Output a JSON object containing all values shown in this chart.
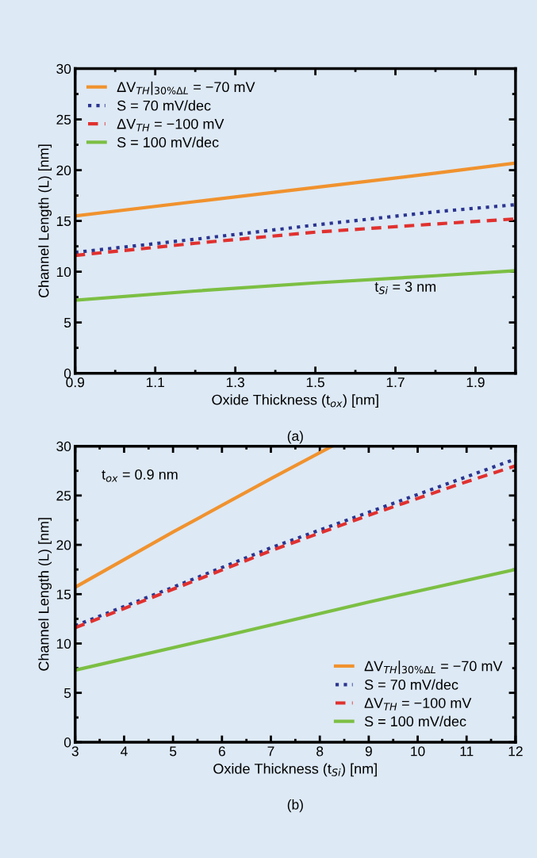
{
  "chart_data": [
    {
      "type": "line",
      "xlabel": "Oxide Thickness (t$_{ox}$) [nm]",
      "ylabel": "Channel Length (L) [nm]",
      "annotations": [
        "t$_{Si}$ = 3 nm",
        "(a)"
      ],
      "xlim": [
        0.9,
        2.0
      ],
      "xticks": [
        0.9,
        1.1,
        1.3,
        1.5,
        1.7,
        1.9
      ],
      "ylim": [
        0,
        30
      ],
      "yticks": [
        0,
        5,
        10,
        15,
        20,
        25,
        30
      ],
      "grid": false,
      "legend": "top left",
      "x": [
        0.9,
        1.2,
        1.5,
        1.8,
        2.0
      ],
      "series": [
        {
          "name": "ΔV$_{TH}$|$_{30%ΔL}$ = −70 mV",
          "color": "#f0922e",
          "line_style": "solid",
          "values": [
            15.5,
            16.9,
            18.3,
            19.7,
            20.7
          ]
        },
        {
          "name": "S = 70 mV/dec",
          "color": "#2b3590",
          "line_style": "dotted",
          "values": [
            11.9,
            13.2,
            14.6,
            15.9,
            16.6
          ]
        },
        {
          "name": "ΔV$_{TH}$ = −100 mV",
          "color": "#e0312f",
          "line_style": "dashed",
          "values": [
            11.6,
            12.8,
            13.9,
            14.7,
            15.2
          ]
        },
        {
          "name": "S = 100 mV/dec",
          "color": "#7cbf43",
          "line_style": "solid",
          "values": [
            7.2,
            8.1,
            8.9,
            9.6,
            10.1
          ]
        }
      ]
    },
    {
      "type": "line",
      "xlabel": "Oxide Thickness (t$_{Si}$) [nm]",
      "ylabel": "Channel Length (L) [nm]",
      "annotations": [
        "t$_{ox}$ = 0.9 nm",
        "(b)"
      ],
      "xlim": [
        3,
        12
      ],
      "xticks": [
        3,
        4,
        5,
        6,
        7,
        8,
        9,
        10,
        11,
        12
      ],
      "ylim": [
        0,
        30
      ],
      "yticks": [
        0,
        5,
        10,
        15,
        20,
        25,
        30
      ],
      "grid": false,
      "legend": "bottom right",
      "series": [
        {
          "name": "ΔV$_{TH}$|$_{30%ΔL}$ = −70 mV",
          "color": "#f0922e",
          "line_style": "solid",
          "x": [
            3,
            5,
            7,
            8.25
          ],
          "values": [
            15.7,
            21.3,
            26.7,
            30
          ]
        },
        {
          "name": "S = 70 mV/dec",
          "color": "#2b3590",
          "line_style": "dotted",
          "x": [
            3,
            5,
            7,
            9,
            11,
            12
          ],
          "values": [
            11.8,
            15.7,
            19.7,
            23.3,
            26.9,
            28.7
          ]
        },
        {
          "name": "ΔV$_{TH}$ = −100 mV",
          "color": "#e0312f",
          "line_style": "dashed",
          "x": [
            3,
            5,
            7,
            9,
            11,
            12
          ],
          "values": [
            11.6,
            15.5,
            19.4,
            23.0,
            26.4,
            28.0
          ]
        },
        {
          "name": "S = 100 mV/dec",
          "color": "#7cbf43",
          "line_style": "solid",
          "x": [
            3,
            6,
            9,
            12
          ],
          "values": [
            7.3,
            10.7,
            14.2,
            17.5
          ]
        }
      ]
    }
  ]
}
